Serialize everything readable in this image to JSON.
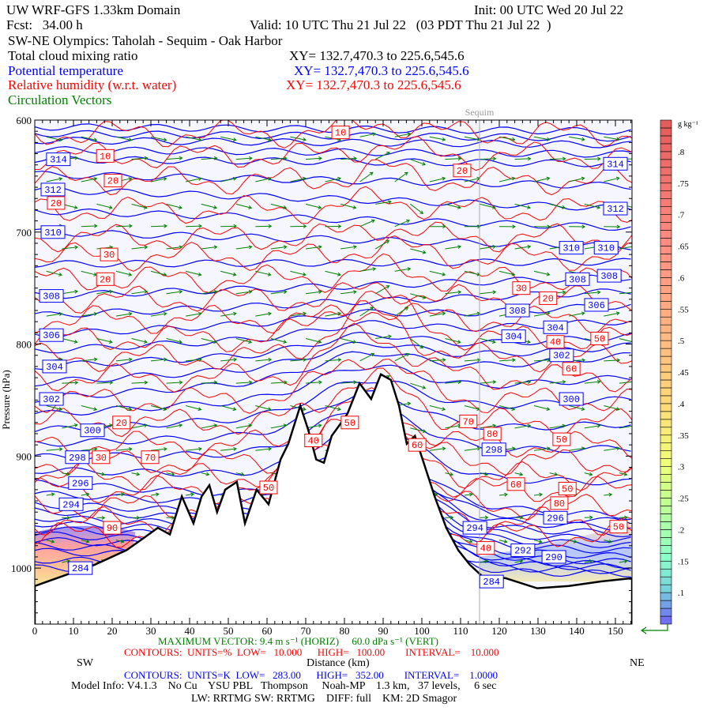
{
  "header": {
    "title": "UW WRF-GFS 1.33km Domain",
    "init": "Init: 00 UTC Wed 20 Jul 22",
    "fcst": "Fcst:   34.00 h",
    "valid": "Valid: 10 UTC Thu 21 Jul 22   (03 PDT Thu 21 Jul 22  )",
    "section": "SW-NE Olympics: Taholah - Sequim - Oak Harbor",
    "fields": [
      {
        "name": "Total cloud mixing ratio",
        "xy": "XY= 132.7,470.3 to 225.6,545.6",
        "color": "#000000"
      },
      {
        "name": "Potential temperature",
        "xy": "XY= 132.7,470.3 to 225.6,545.6",
        "color": "#0000ff"
      },
      {
        "name": "Relative humidity (w.r.t. water)",
        "xy": "XY= 132.7,470.3 to 225.6,545.6",
        "color": "#ff0000"
      },
      {
        "name": "Circulation Vectors",
        "color": "#008000"
      }
    ]
  },
  "footer": {
    "sw": "SW",
    "ne": "NE",
    "xlabel": "Distance (km)",
    "ylabel": "Pressure (hPa)",
    "max_vector": "MAXIMUM VECTOR: 9.4 m s⁻¹ (HORIZ)     60.0 dPa s⁻¹ (VERT)",
    "rh_contours": "CONTOURS:  UNITS=%  LOW=   10.000      HIGH=   100.00        INTERVAL=    10.000",
    "th_contours": "CONTOURS:  UNITS=K  LOW=   283.00      HIGH=   352.00        INTERVAL=    1.0000",
    "model_info": "Model Info: V4.1.3    No Cu    YSU PBL   Thompson     Noah-MP    1.3 km,   37 levels,     6 sec",
    "physics": "LW: RRTMG SW: RRTMG    DIFF: full    KM: 2D Smagor"
  },
  "chart_data": {
    "type": "cross-section",
    "xlim": [
      0,
      154.3
    ],
    "ylim": [
      600,
      1050
    ],
    "xticks": [
      0,
      10,
      20,
      30,
      40,
      50,
      60,
      70,
      80,
      90,
      100,
      110,
      120,
      130,
      140,
      150
    ],
    "yticks": [
      600,
      700,
      800,
      900,
      1000
    ],
    "ytick_labels": [
      "600",
      "700",
      "800",
      "900",
      "1000"
    ],
    "marker": {
      "label": "Sequim",
      "km": 114.9
    },
    "terrain": [
      [
        0,
        1016
      ],
      [
        7.3,
        1007
      ],
      [
        15.5,
        997
      ],
      [
        23.7,
        984
      ],
      [
        27.8,
        974
      ],
      [
        31.8,
        964
      ],
      [
        34.9,
        970
      ],
      [
        38,
        936
      ],
      [
        41,
        960
      ],
      [
        43.1,
        936
      ],
      [
        45.1,
        926
      ],
      [
        47.1,
        950
      ],
      [
        49.2,
        930
      ],
      [
        52.2,
        923
      ],
      [
        54.3,
        960
      ],
      [
        57.3,
        930
      ],
      [
        60.4,
        943
      ],
      [
        63.5,
        903
      ],
      [
        65.5,
        889
      ],
      [
        68.6,
        855
      ],
      [
        70.6,
        876
      ],
      [
        72.7,
        903
      ],
      [
        74.7,
        906
      ],
      [
        76.7,
        882
      ],
      [
        78.8,
        872
      ],
      [
        80.8,
        862
      ],
      [
        83.9,
        835
      ],
      [
        86.9,
        849
      ],
      [
        89.4,
        827
      ],
      [
        92,
        832
      ],
      [
        94.1,
        855
      ],
      [
        96.1,
        889
      ],
      [
        98.2,
        882
      ],
      [
        100.2,
        903
      ],
      [
        103.3,
        936
      ],
      [
        106.3,
        964
      ],
      [
        109.4,
        984
      ],
      [
        112.4,
        997
      ],
      [
        115.5,
        1007
      ],
      [
        121.6,
        1009
      ],
      [
        129.8,
        1018
      ],
      [
        138,
        1016
      ],
      [
        146.1,
        1012
      ],
      [
        154.3,
        1009
      ]
    ],
    "theta_levels": [
      {
        "k": 318,
        "p_sw": 606,
        "p_ne": 610
      },
      {
        "k": 316,
        "p_sw": 618,
        "p_ne": 622
      },
      {
        "k": 314,
        "p_sw": 635,
        "p_ne": 639
      },
      {
        "k": 312,
        "p_sw": 662,
        "p_ne": 679
      },
      {
        "k": 310,
        "p_sw": 700,
        "p_ne": 713
      },
      {
        "k": 308,
        "p_sw": 757,
        "p_ne": 740
      },
      {
        "k": 306,
        "p_sw": 792,
        "p_ne": 765
      },
      {
        "k": 304,
        "p_sw": 820,
        "p_ne": 793
      },
      {
        "k": 302,
        "p_sw": 849,
        "p_ne": 810
      },
      {
        "k": 300,
        "p_sw": 877,
        "p_ne": 849
      },
      {
        "k": 298,
        "p_sw": 901,
        "p_ne": 893
      },
      {
        "k": 296,
        "p_sw": 924,
        "p_ne": 954
      },
      {
        "k": 294,
        "p_sw": 943,
        "p_ne": 964
      },
      {
        "k": 292,
        "p_sw": 955,
        "p_ne": 975
      },
      {
        "k": 290,
        "p_sw": 965,
        "p_ne": 985
      },
      {
        "k": 288,
        "p_sw": 975,
        "p_ne": 995
      },
      {
        "k": 286,
        "p_sw": 985,
        "p_ne": 1000
      },
      {
        "k": 284,
        "p_sw": 1000,
        "p_ne": 1005
      }
    ],
    "theta_labels": [
      {
        "v": "314",
        "km": 6.1,
        "p": 635
      },
      {
        "v": "312",
        "km": 4.7,
        "p": 662
      },
      {
        "v": "310",
        "km": 4.7,
        "p": 700
      },
      {
        "v": "308",
        "km": 4.3,
        "p": 757
      },
      {
        "v": "306",
        "km": 4.3,
        "p": 792
      },
      {
        "v": "304",
        "km": 5.1,
        "p": 820
      },
      {
        "v": "302",
        "km": 4.3,
        "p": 849
      },
      {
        "v": "300",
        "km": 14.9,
        "p": 877
      },
      {
        "v": "298",
        "km": 11,
        "p": 901
      },
      {
        "v": "296",
        "km": 11.8,
        "p": 924
      },
      {
        "v": "294",
        "km": 9.4,
        "p": 943
      },
      {
        "v": "284",
        "km": 11.8,
        "p": 1000
      },
      {
        "v": "314",
        "km": 150,
        "p": 639
      },
      {
        "v": "312",
        "km": 150,
        "p": 679
      },
      {
        "v": "310",
        "km": 138.6,
        "p": 714
      },
      {
        "v": "310",
        "km": 147.6,
        "p": 714
      },
      {
        "v": "308",
        "km": 140.2,
        "p": 742
      },
      {
        "v": "308",
        "km": 148.4,
        "p": 739
      },
      {
        "v": "306",
        "km": 145.1,
        "p": 765
      },
      {
        "v": "308",
        "km": 124.7,
        "p": 770
      },
      {
        "v": "304",
        "km": 123.7,
        "p": 793
      },
      {
        "v": "304",
        "km": 134.5,
        "p": 785
      },
      {
        "v": "302",
        "km": 136.1,
        "p": 810
      },
      {
        "v": "300",
        "km": 138.6,
        "p": 849
      },
      {
        "v": "298",
        "km": 118.6,
        "p": 894
      },
      {
        "v": "296",
        "km": 134.5,
        "p": 955
      },
      {
        "v": "294",
        "km": 113.7,
        "p": 964
      },
      {
        "v": "292",
        "km": 126.1,
        "p": 984
      },
      {
        "v": "290",
        "km": 134.1,
        "p": 990
      },
      {
        "v": "284",
        "km": 118,
        "p": 1012
      }
    ],
    "rh_lines": [
      612,
      632,
      654,
      680,
      705,
      722,
      742,
      760,
      778,
      795,
      812,
      830,
      850,
      870,
      890,
      905,
      918,
      930,
      945,
      958,
      970
    ],
    "rh_labels": [
      {
        "v": "10",
        "km": 79,
        "p": 611
      },
      {
        "v": "10",
        "km": 18.2,
        "p": 632
      },
      {
        "v": "20",
        "km": 20.2,
        "p": 654
      },
      {
        "v": "20",
        "km": 110.4,
        "p": 645
      },
      {
        "v": "20",
        "km": 5.5,
        "p": 662
      },
      {
        "v": "30",
        "km": 19.2,
        "p": 720
      },
      {
        "v": "20",
        "km": 18.2,
        "p": 742
      },
      {
        "v": "20",
        "km": 132.6,
        "p": 759
      },
      {
        "v": "30",
        "km": 125.7,
        "p": 774
      },
      {
        "v": "50",
        "km": 145.9,
        "p": 795
      },
      {
        "v": "40",
        "km": 134.5,
        "p": 786
      },
      {
        "v": "60",
        "km": 138.6,
        "p": 822
      },
      {
        "v": "20",
        "km": 22.4,
        "p": 870
      },
      {
        "v": "70",
        "km": 29.8,
        "p": 901
      },
      {
        "v": "30",
        "km": 17.1,
        "p": 913
      },
      {
        "v": "40",
        "km": 72,
        "p": 886
      },
      {
        "v": "50",
        "km": 81.4,
        "p": 870
      },
      {
        "v": "70",
        "km": 112,
        "p": 869
      },
      {
        "v": "60",
        "km": 98.8,
        "p": 890
      },
      {
        "v": "50",
        "km": 136.1,
        "p": 885
      },
      {
        "v": "80",
        "km": 118.2,
        "p": 892
      },
      {
        "v": "60",
        "km": 124.3,
        "p": 925
      },
      {
        "v": "50",
        "km": 137.6,
        "p": 929
      },
      {
        "v": "50",
        "km": 60.4,
        "p": 928
      },
      {
        "v": "90",
        "km": 20,
        "p": 964
      },
      {
        "v": "40",
        "km": 116.5,
        "p": 970
      },
      {
        "v": "80",
        "km": 135.5,
        "p": 954
      },
      {
        "v": "50",
        "km": 150.8,
        "p": 963
      }
    ],
    "vector_grid": {
      "km_step": 9,
      "p_levels": [
        615,
        635,
        655,
        675,
        695,
        715,
        735,
        755,
        775,
        795,
        815,
        835,
        855,
        875,
        895,
        915,
        935,
        955,
        975,
        995
      ]
    },
    "colorbar": {
      "units": "g kg⁻¹",
      "min": 0.05,
      "max": 0.85,
      "step": 0.0125,
      "labels": [
        ".8",
        ".75",
        ".7",
        ".65",
        ".6",
        ".55",
        ".5",
        ".45",
        ".4",
        ".35",
        ".3",
        ".25",
        ".2",
        ".15",
        ".1"
      ],
      "label_values": [
        0.8,
        0.75,
        0.7,
        0.65,
        0.6,
        0.55,
        0.5,
        0.45,
        0.4,
        0.35,
        0.3,
        0.25,
        0.2,
        0.15,
        0.1
      ]
    }
  }
}
